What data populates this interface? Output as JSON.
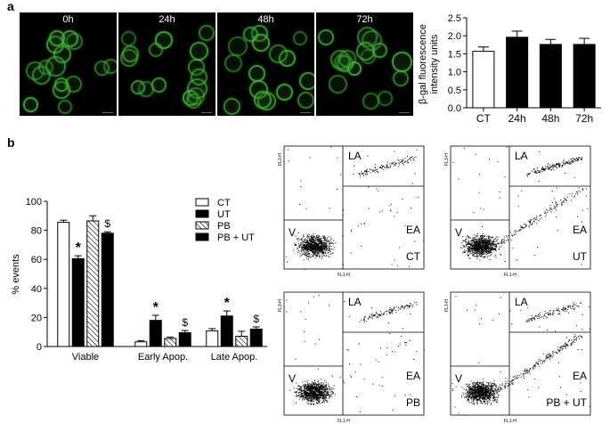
{
  "panel_a": {
    "letter": "a"
  },
  "panel_b": {
    "letter": "b"
  },
  "micrographs": [
    {
      "label": "0h"
    },
    {
      "label": "24h"
    },
    {
      "label": "48h"
    },
    {
      "label": "72h"
    }
  ],
  "flow_plots": [
    {
      "gate_la": "LA",
      "gate_ea": "EA",
      "gate_v": "V",
      "sample": "CT",
      "x_axis": "FL1-H",
      "y_axis": "FL3-H"
    },
    {
      "gate_la": "LA",
      "gate_ea": "EA",
      "gate_v": "V",
      "sample": "UT",
      "x_axis": "FL1-H",
      "y_axis": "FL3-H"
    },
    {
      "gate_la": "LA",
      "gate_ea": "EA",
      "gate_v": "V",
      "sample": "PB",
      "x_axis": "FL1-H",
      "y_axis": "FL3-H"
    },
    {
      "gate_la": "LA",
      "gate_ea": "EA",
      "gate_v": "V",
      "sample": "PB + UT",
      "x_axis": "FL1-H",
      "y_axis": "FL3-H"
    }
  ],
  "chart_data": [
    {
      "type": "bar",
      "ylabel": "β-gal fluorescence intensity units",
      "ylabel_lines": [
        "β-gal fluorescence",
        "intensity units"
      ],
      "categories": [
        "CT",
        "24h",
        "48h",
        "72h"
      ],
      "values": [
        1.57,
        1.96,
        1.76,
        1.76
      ],
      "errors": [
        0.12,
        0.17,
        0.14,
        0.17
      ],
      "fills": [
        "#ffffff",
        "#000000",
        "#000000",
        "#000000"
      ],
      "ylim": [
        0,
        2.5
      ],
      "yticks": [
        0.0,
        0.5,
        1.0,
        1.5,
        2.0,
        2.5
      ],
      "ytick_labels": [
        "0.0",
        "0.5",
        "1.0",
        "1.5",
        "2.0",
        "2.5"
      ]
    },
    {
      "type": "bar",
      "ylabel": "% events",
      "categories": [
        "Viable",
        "Early Apop.",
        "Late Apop."
      ],
      "series": [
        {
          "name": "CT",
          "fill": "white",
          "values": [
            85.5,
            3.2,
            10.8
          ],
          "errors": [
            1.5,
            0.8,
            1.5
          ]
        },
        {
          "name": "UT",
          "fill": "black",
          "values": [
            60.5,
            18.0,
            21.0
          ],
          "errors": [
            2.0,
            3.5,
            3.5
          ]
        },
        {
          "name": "PB",
          "fill": "hatched",
          "values": [
            86.5,
            5.5,
            7.0
          ],
          "errors": [
            3.5,
            1.0,
            3.5
          ]
        },
        {
          "name": "PB + UT",
          "fill": "black",
          "values": [
            78.0,
            9.5,
            12.0
          ],
          "errors": [
            1.0,
            1.5,
            1.5
          ]
        }
      ],
      "annotations": [
        {
          "category": "Viable",
          "series": "UT",
          "text": "*"
        },
        {
          "category": "Viable",
          "series": "PB + UT",
          "text": "$"
        },
        {
          "category": "Early Apop.",
          "series": "UT",
          "text": "*"
        },
        {
          "category": "Early Apop.",
          "series": "PB + UT",
          "text": "$"
        },
        {
          "category": "Late Apop.",
          "series": "UT",
          "text": "*"
        },
        {
          "category": "Late Apop.",
          "series": "PB + UT",
          "text": "$"
        }
      ],
      "ylim": [
        0,
        100
      ],
      "yticks": [
        0,
        20,
        40,
        60,
        80,
        100
      ],
      "ytick_labels": [
        "0",
        "20",
        "40",
        "60",
        "80",
        "100"
      ],
      "legend": "top-right"
    }
  ]
}
